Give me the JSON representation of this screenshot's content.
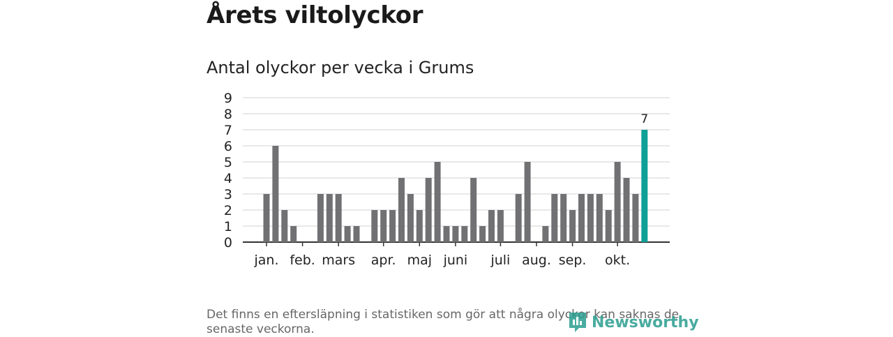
{
  "page": {
    "title": "Årets viltolyckor",
    "footnote": "Det finns en eftersläpning i statistiken som gör att några olyckor kan saknas de senaste veckorna.",
    "brand": "Newsworthy"
  },
  "colors": {
    "bar": "#717073",
    "highlight": "#0fa097",
    "grid": "#d9d9d9",
    "axis": "#333333"
  },
  "chart_data": {
    "type": "bar",
    "title": "Antal olyckor per vecka i Grums",
    "xlabel": "",
    "ylabel": "",
    "ylim": [
      0,
      9
    ],
    "yticks": [
      0,
      1,
      2,
      3,
      4,
      5,
      6,
      7,
      8,
      9
    ],
    "grid": true,
    "weeks": [
      1,
      2,
      3,
      4,
      5,
      6,
      7,
      8,
      9,
      10,
      11,
      12,
      13,
      14,
      15,
      16,
      17,
      18,
      19,
      20,
      21,
      22,
      23,
      24,
      25,
      26,
      27,
      28,
      29,
      30,
      31,
      32,
      33,
      34,
      35,
      36,
      37,
      38,
      39,
      40,
      41,
      42,
      43
    ],
    "values": [
      3,
      6,
      2,
      1,
      0,
      0,
      3,
      3,
      3,
      1,
      1,
      0,
      2,
      2,
      2,
      4,
      3,
      2,
      4,
      5,
      1,
      1,
      1,
      4,
      1,
      2,
      2,
      0,
      3,
      5,
      0,
      1,
      3,
      3,
      2,
      3,
      3,
      3,
      2,
      5,
      4,
      3,
      7
    ],
    "highlight_index": 42,
    "data_labels": [
      {
        "index": 42,
        "text": "7"
      }
    ],
    "month_labels": [
      {
        "label": "jan.",
        "week": 1
      },
      {
        "label": "feb.",
        "week": 5
      },
      {
        "label": "mars",
        "week": 9
      },
      {
        "label": "apr.",
        "week": 14
      },
      {
        "label": "maj",
        "week": 18
      },
      {
        "label": "juni",
        "week": 22
      },
      {
        "label": "juli",
        "week": 27
      },
      {
        "label": "aug.",
        "week": 31
      },
      {
        "label": "sep.",
        "week": 35
      },
      {
        "label": "okt.",
        "week": 40
      }
    ]
  }
}
